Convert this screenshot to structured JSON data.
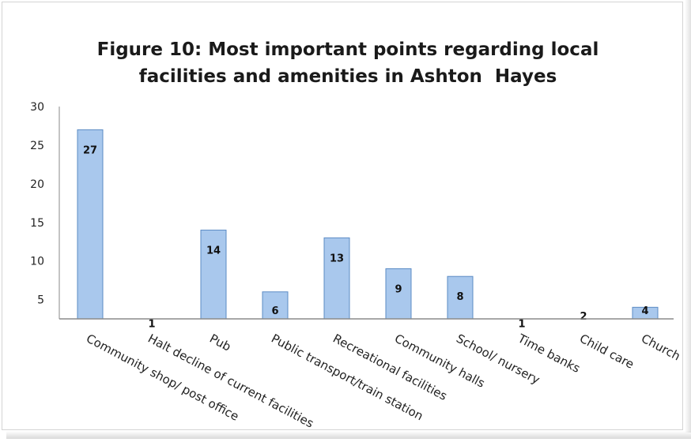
{
  "chart_data": {
    "type": "bar",
    "title": "Figure 10: Most important points regarding local facilities and amenities in Ashton Hayes",
    "title_lines": [
      "Figure 10: Most important points regarding local",
      "facilities and amenities in Ashton  Hayes"
    ],
    "categories": [
      "Community shop/ post office",
      "Halt decline of current facilities",
      "Pub",
      "Public transport/train station",
      "Recreational facilities",
      "Community halls",
      "School/ nursery",
      "Time banks",
      "Child care",
      "Church"
    ],
    "values": [
      27,
      1,
      14,
      6,
      13,
      9,
      8,
      1,
      2,
      4
    ],
    "data_labels": [
      "27",
      "1",
      "14",
      "6",
      "13",
      "9",
      "8",
      "1",
      "2",
      "4"
    ],
    "yticks": [
      5,
      10,
      15,
      20,
      25,
      30
    ],
    "ylim": [
      2.5,
      30
    ],
    "xlabel": "",
    "ylabel": "",
    "grid": false,
    "bar_color": "#a9c8ed",
    "bar_edge_color": "#5b8bc4"
  }
}
